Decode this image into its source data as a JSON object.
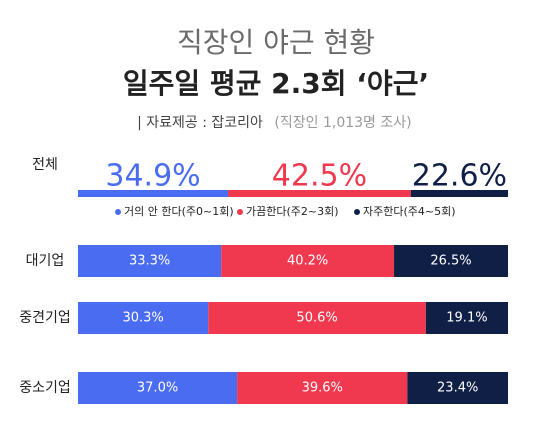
{
  "chart_data": {
    "type": "stacked-bar-100",
    "title": "직장인 야근 현황",
    "subtitle": "일주일 평균 2.3회 ‘야근’",
    "source": "| 자료제공 : 잡코리아",
    "source_note": "(직장인 1,013명 조사)",
    "categories": [
      "전체",
      "대기업",
      "중견기업",
      "중소기업"
    ],
    "series": [
      {
        "name": "거의 안 한다(주0~1회)",
        "color": "#4a6cf0",
        "values": [
          34.9,
          33.3,
          30.3,
          37.0
        ],
        "value_labels": [
          "34.9%",
          "33.3%",
          "30.3%",
          "37.0%"
        ]
      },
      {
        "name": "가끔한다(주2~3회)",
        "color": "#f0394f",
        "values": [
          42.5,
          40.2,
          50.6,
          39.6
        ],
        "value_labels": [
          "42.5%",
          "40.2%",
          "50.6%",
          "39.6%"
        ]
      },
      {
        "name": "자주한다(주4~5회)",
        "color": "#0f1f45",
        "values": [
          22.6,
          26.5,
          19.1,
          23.4
        ],
        "value_labels": [
          "22.6%",
          "26.5%",
          "19.1%",
          "23.4%"
        ]
      }
    ]
  }
}
